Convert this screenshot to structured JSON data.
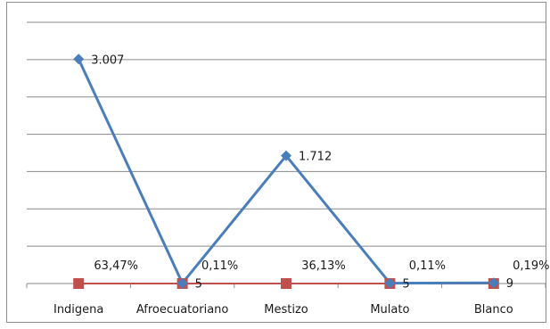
{
  "chart_data": {
    "type": "line",
    "categories": [
      "Indigena",
      "Afroecuatoriano",
      "Mestizo",
      "Mulato",
      "Blanco"
    ],
    "series": [
      {
        "values": [
          3007,
          5,
          1712,
          5,
          9
        ],
        "value_labels": [
          "3.007",
          "5",
          "1.712",
          "5",
          "9"
        ],
        "color": "#4a7ebb",
        "marker": "diamond"
      },
      {
        "values": [
          63.47,
          0.11,
          36.13,
          0.11,
          0.19
        ],
        "value_labels": [
          "63,47%",
          "0,11%",
          "36,13%",
          "0,11%",
          "0,19%"
        ],
        "color": "#c0504d",
        "marker": "square"
      }
    ],
    "ylim": [
      0,
      3500
    ],
    "grid": true,
    "gridline_count": 7,
    "legend": "none"
  }
}
